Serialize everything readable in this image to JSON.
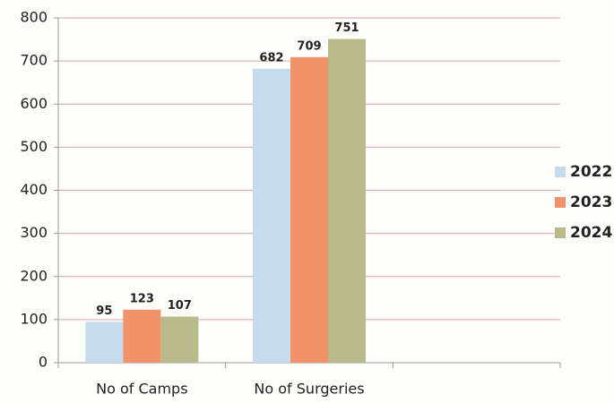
{
  "chart_data": {
    "type": "bar",
    "categories": [
      "No of Camps",
      "No of Surgeries",
      null
    ],
    "series": [
      {
        "name": "2022",
        "color": "#c6dcec",
        "values": [
          95,
          682,
          null
        ]
      },
      {
        "name": "2023",
        "color": "#f1936a",
        "values": [
          123,
          709,
          null
        ]
      },
      {
        "name": "2024",
        "color": "#b9ba8c",
        "values": [
          107,
          751,
          null
        ]
      }
    ],
    "ylim": [
      0,
      800
    ],
    "yticks": [
      0,
      100,
      200,
      300,
      400,
      500,
      600,
      700,
      800
    ],
    "grid": true,
    "legend": "right"
  }
}
